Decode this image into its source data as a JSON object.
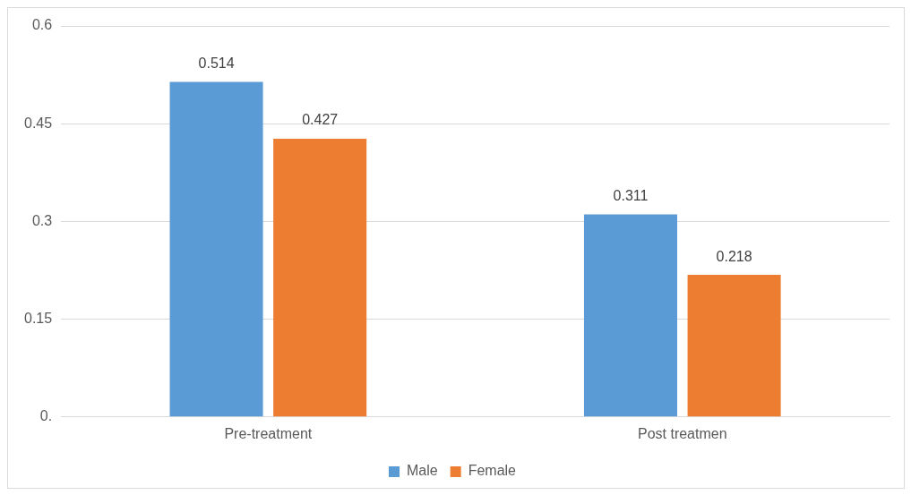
{
  "chart_data": {
    "type": "bar",
    "categories": [
      "Pre-treatment",
      "Post treatmen"
    ],
    "series": [
      {
        "name": "Male",
        "color": "#5b9bd5",
        "values": [
          0.514,
          0.311
        ]
      },
      {
        "name": "Female",
        "color": "#ed7d31",
        "values": [
          0.427,
          0.218
        ]
      }
    ],
    "ylim": [
      0,
      0.6
    ],
    "yticks": [
      {
        "value": 0,
        "label": "0."
      },
      0.15,
      0.3,
      0.45,
      0.6
    ],
    "grid": "y",
    "legend": "bottom",
    "data_labels": true
  }
}
